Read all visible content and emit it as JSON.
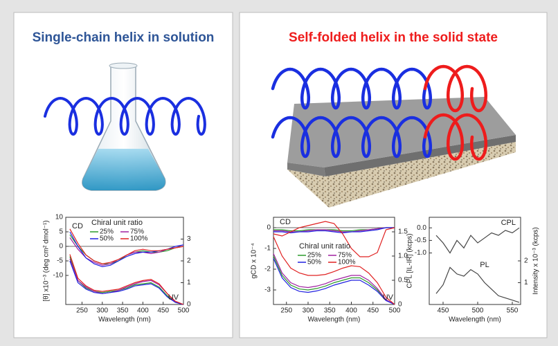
{
  "left_panel": {
    "title": "Single-chain helix in solution"
  },
  "right_panel": {
    "title": "Self-folded helix in the solid state"
  },
  "plots": [
    {
      "type": "line",
      "xlabel": "Wavelength (nm)",
      "ylabel": "[θ] x10⁻³ (deg cm² dmol⁻¹)",
      "x": [
        220,
        240,
        260,
        280,
        300,
        320,
        340,
        360,
        380,
        400,
        420,
        440,
        460,
        480,
        500
      ],
      "xlim": [
        210,
        500
      ],
      "xticks": [
        250,
        300,
        350,
        400,
        450,
        500
      ],
      "ylim": [
        -20,
        10
      ],
      "yticks": [
        -10,
        -5,
        0,
        5,
        10
      ],
      "y2lim": [
        0,
        4
      ],
      "y2ticks": [
        0,
        1,
        2,
        3
      ],
      "legend_title": "Chiral unit ratio",
      "annotations": [
        "CD",
        "UV"
      ],
      "series": [
        {
          "name": "25%",
          "color": "#2a9a2a",
          "values": [
            4,
            0,
            -3,
            -5,
            -6,
            -6,
            -5,
            -3,
            -2,
            -1.5,
            -2,
            -2,
            -1.5,
            -0.5,
            0
          ]
        },
        {
          "name": "75%",
          "color": "#a020a0",
          "values": [
            3,
            -1,
            -4,
            -5.5,
            -6.5,
            -6,
            -4.5,
            -3,
            -2,
            -2,
            -2.5,
            -2,
            -1,
            -0.5,
            0
          ]
        },
        {
          "name": "50%",
          "color": "#2020e0",
          "values": [
            5,
            0,
            -4,
            -6,
            -7,
            -6.5,
            -5,
            -3.5,
            -2.5,
            -2,
            -2,
            -1.5,
            -1,
            0,
            0.5
          ]
        },
        {
          "name": "100%",
          "color": "#e02020",
          "values": [
            6,
            1,
            -3,
            -5,
            -6,
            -5.5,
            -4.5,
            -3,
            -1.5,
            -1,
            -1.5,
            -1.5,
            -1,
            -0.5,
            0
          ]
        },
        {
          "color": "#2a9a2a",
          "axis": "y2",
          "values": [
            2.2,
            1.1,
            0.75,
            0.6,
            0.55,
            0.6,
            0.65,
            0.75,
            0.9,
            0.95,
            1.0,
            0.8,
            0.4,
            0.1,
            0
          ]
        },
        {
          "color": "#a020a0",
          "axis": "y2",
          "values": [
            2.1,
            1.1,
            0.8,
            0.6,
            0.5,
            0.55,
            0.65,
            0.8,
            0.95,
            1.05,
            1.1,
            0.9,
            0.5,
            0.1,
            0
          ]
        },
        {
          "color": "#2020e0",
          "axis": "y2",
          "values": [
            2.0,
            1.0,
            0.7,
            0.55,
            0.5,
            0.55,
            0.6,
            0.7,
            0.85,
            0.9,
            0.95,
            0.75,
            0.35,
            0.1,
            0
          ]
        },
        {
          "color": "#e02020",
          "axis": "y2",
          "values": [
            2.3,
            1.2,
            0.85,
            0.65,
            0.6,
            0.65,
            0.7,
            0.85,
            1.0,
            1.1,
            1.15,
            0.95,
            0.5,
            0.15,
            0
          ]
        }
      ]
    },
    {
      "type": "line",
      "xlabel": "Wavelength (nm)",
      "ylabel": "gCD x 10⁻⁴",
      "x": [
        220,
        240,
        260,
        280,
        300,
        320,
        340,
        360,
        380,
        400,
        420,
        440,
        460,
        480,
        500
      ],
      "xlim": [
        220,
        500
      ],
      "xticks": [
        250,
        300,
        350,
        400,
        450,
        500
      ],
      "ylim": [
        -3.7,
        0.5
      ],
      "yticks": [
        -3,
        -2,
        -1,
        0
      ],
      "y2lim": [
        0,
        1.8
      ],
      "y2ticks": [
        0,
        0.5,
        {
          "value": 1,
          "label": "1.0"
        },
        1.5
      ],
      "legend_title": "Chiral unit ratio",
      "annotations": [
        "CD",
        "UV"
      ],
      "series": [
        {
          "name": "25%",
          "color": "#2a9a2a",
          "values": [
            -0.1,
            -0.1,
            -0.15,
            -0.15,
            -0.1,
            -0.1,
            -0.1,
            -0.1,
            -0.15,
            -0.15,
            -0.1,
            -0.1,
            -0.05,
            0,
            0
          ]
        },
        {
          "name": "75%",
          "color": "#a020a0",
          "values": [
            -0.15,
            -0.15,
            -0.2,
            -0.2,
            -0.15,
            -0.1,
            -0.1,
            -0.15,
            -0.2,
            -0.2,
            -0.15,
            -0.1,
            -0.05,
            0,
            0
          ]
        },
        {
          "name": "50%",
          "color": "#2020e0",
          "values": [
            -0.2,
            -0.2,
            -0.25,
            -0.2,
            -0.2,
            -0.15,
            -0.15,
            -0.2,
            -0.25,
            -0.2,
            -0.2,
            -0.15,
            -0.1,
            0,
            0
          ]
        },
        {
          "name": "100%",
          "color": "#e02020",
          "values": [
            -0.3,
            -0.4,
            -0.2,
            0,
            0.1,
            0.2,
            0.3,
            0.2,
            -0.3,
            -1.0,
            -1.4,
            -1.4,
            -1.2,
            -0.1,
            0
          ]
        },
        {
          "color": "#2a9a2a",
          "axis": "y2",
          "values": [
            1.0,
            0.6,
            0.4,
            0.32,
            0.3,
            0.33,
            0.38,
            0.45,
            0.5,
            0.55,
            0.55,
            0.45,
            0.3,
            0.1,
            0
          ]
        },
        {
          "color": "#a020a0",
          "axis": "y2",
          "values": [
            1.05,
            0.65,
            0.45,
            0.37,
            0.35,
            0.38,
            0.43,
            0.5,
            0.55,
            0.6,
            0.6,
            0.5,
            0.33,
            0.1,
            0
          ]
        },
        {
          "color": "#2020e0",
          "axis": "y2",
          "values": [
            0.95,
            0.55,
            0.35,
            0.27,
            0.25,
            0.28,
            0.33,
            0.4,
            0.45,
            0.5,
            0.5,
            0.4,
            0.27,
            0.08,
            0
          ]
        },
        {
          "color": "#e02020",
          "axis": "y2",
          "values": [
            1.4,
            1.0,
            0.75,
            0.65,
            0.6,
            0.6,
            0.62,
            0.68,
            0.75,
            0.8,
            0.78,
            0.65,
            0.45,
            0.15,
            0
          ]
        }
      ]
    },
    {
      "type": "line",
      "xlabel": "Wavelength (nm)",
      "ylabel": "CPL [IL-IR] (kcps)",
      "y2label": "Intensity x 10⁻³ (kcps)",
      "x": [
        440,
        450,
        460,
        470,
        480,
        490,
        500,
        510,
        520,
        530,
        540,
        550,
        560
      ],
      "xlim": [
        430,
        562
      ],
      "xticks": [
        450,
        500,
        550
      ],
      "ylim": [
        -3.05,
        0.42
      ],
      "yticks": [
        {
          "value": -1,
          "label": "-1.0"
        },
        -0.5,
        {
          "value": 0,
          "label": "0.0"
        }
      ],
      "y2lim": [
        0,
        4
      ],
      "y2ticks": [
        1,
        2
      ],
      "annotations": [
        "CPL",
        "PL"
      ],
      "series": [
        {
          "color": "#444444",
          "values": [
            -0.3,
            -0.6,
            -1.0,
            -0.5,
            -0.8,
            -0.3,
            -0.6,
            -0.4,
            -0.2,
            -0.3,
            -0.1,
            -0.2,
            0
          ]
        },
        {
          "color": "#444444",
          "axis": "y2",
          "values": [
            0.5,
            0.9,
            1.7,
            1.4,
            1.3,
            1.6,
            1.4,
            1.0,
            0.7,
            0.4,
            0.3,
            0.2,
            0.1
          ]
        }
      ]
    }
  ]
}
